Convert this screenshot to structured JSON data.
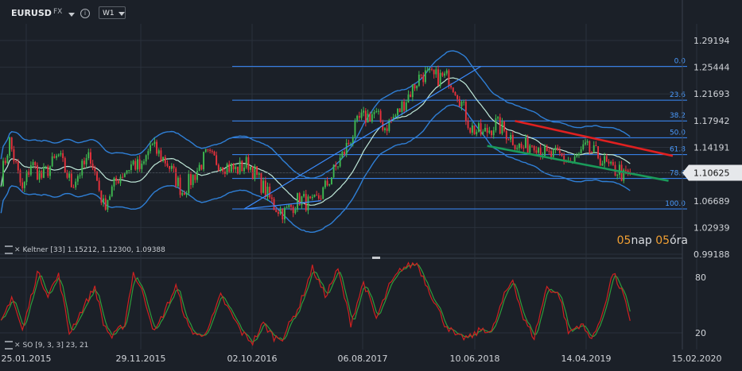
{
  "toolbar": {
    "symbol": "EURUSD",
    "source": "FX",
    "timeframe": "W1",
    "info_glyph": "i"
  },
  "keltner_legend": {
    "label": "Keltner",
    "params": "[33]",
    "upper": "1.15212",
    "middle": "1.12300",
    "lower": "1.09388"
  },
  "so_legend": {
    "label": "SO",
    "params": "[9, 3, 3]",
    "k": "23",
    "d": "21"
  },
  "countdown": {
    "days": "05",
    "days_unit": "nap",
    "hours": "05",
    "hours_unit": "óra"
  },
  "colors": {
    "background": "#1b2028",
    "grid": "#2a313b",
    "bull": "#3fb950",
    "bear": "#e8323c",
    "keltner": "#2f7fd6",
    "ma": "#bfe8d8",
    "fib": "#3a8cff",
    "trend_red": "#e02020",
    "trend_green": "#1a9a5a",
    "stoch_k": "#d02020",
    "stoch_d": "#2e9c3c",
    "countdown": "#f2a033"
  },
  "chart_data": {
    "type": "candlestick",
    "price_axis": {
      "ticks": [
        "1.29194",
        "1.25444",
        "1.21693",
        "1.17942",
        "1.14191",
        "1.10625",
        "1.06689",
        "1.02939",
        "0.99188"
      ],
      "current": "1.10625",
      "ylim": [
        0.985,
        1.33
      ]
    },
    "x_axis": {
      "labels": [
        "25.01.2015",
        "29.11.2015",
        "02.10.2016",
        "06.08.2017",
        "10.06.2018",
        "14.04.2019",
        "15.02.2020"
      ]
    },
    "price_waypoints": [
      [
        0,
        1.1
      ],
      [
        4,
        1.15
      ],
      [
        10,
        1.08
      ],
      [
        14,
        1.12
      ],
      [
        19,
        1.1
      ],
      [
        27,
        1.13
      ],
      [
        33,
        1.09
      ],
      [
        42,
        1.13
      ],
      [
        48,
        1.06
      ],
      [
        55,
        1.1
      ],
      [
        62,
        1.12
      ],
      [
        66,
        1.11
      ],
      [
        70,
        1.145
      ],
      [
        78,
        1.12
      ],
      [
        85,
        1.08
      ],
      [
        90,
        1.1
      ],
      [
        96,
        1.13
      ],
      [
        103,
        1.12
      ],
      [
        110,
        1.11
      ],
      [
        116,
        1.12
      ],
      [
        122,
        1.09
      ],
      [
        128,
        1.06
      ],
      [
        133,
        1.05
      ],
      [
        140,
        1.07
      ],
      [
        146,
        1.06
      ],
      [
        151,
        1.08
      ],
      [
        160,
        1.13
      ],
      [
        168,
        1.18
      ],
      [
        175,
        1.19
      ],
      [
        180,
        1.17
      ],
      [
        186,
        1.19
      ],
      [
        192,
        1.22
      ],
      [
        197,
        1.245
      ],
      [
        203,
        1.24
      ],
      [
        210,
        1.24
      ],
      [
        214,
        1.22
      ],
      [
        220,
        1.17
      ],
      [
        226,
        1.16
      ],
      [
        232,
        1.175
      ],
      [
        238,
        1.16
      ],
      [
        244,
        1.14
      ],
      [
        250,
        1.15
      ],
      [
        256,
        1.13
      ],
      [
        262,
        1.13
      ],
      [
        268,
        1.12
      ],
      [
        274,
        1.14
      ],
      [
        280,
        1.13
      ],
      [
        286,
        1.11
      ],
      [
        290,
        1.11
      ],
      [
        292,
        1.1
      ],
      [
        295,
        1.106
      ]
    ],
    "fibonacci": {
      "levels": [
        {
          "label": "0.0",
          "value": 1.2555
        },
        {
          "label": "23.6",
          "value": 1.2082
        },
        {
          "label": "38.2",
          "value": 1.179
        },
        {
          "label": "50.0",
          "value": 1.1554
        },
        {
          "label": "61.8",
          "value": 1.1318
        },
        {
          "label": "78.6",
          "value": 1.0982
        },
        {
          "label": "100.0",
          "value": 1.0554
        }
      ]
    },
    "trendlines": [
      {
        "color": "trend_red",
        "from": [
          241,
          1.179
        ],
        "to": [
          315,
          1.13
        ]
      },
      {
        "color": "trend_green",
        "from": [
          228,
          1.144
        ],
        "to": [
          313,
          1.095
        ]
      },
      {
        "color": "fib",
        "from": [
          114,
          1.0554
        ],
        "to": [
          225,
          1.2555
        ]
      },
      {
        "color": "fib",
        "from": [
          114,
          1.0554
        ],
        "to": [
          150,
          1.067
        ]
      }
    ],
    "stochastic": {
      "ylim": [
        0,
        100
      ],
      "ticks": [
        "80",
        "20"
      ],
      "k_waypoints": [
        [
          0,
          30
        ],
        [
          5,
          60
        ],
        [
          10,
          22
        ],
        [
          17,
          85
        ],
        [
          22,
          62
        ],
        [
          27,
          82
        ],
        [
          32,
          20
        ],
        [
          38,
          45
        ],
        [
          44,
          70
        ],
        [
          48,
          30
        ],
        [
          52,
          15
        ],
        [
          58,
          30
        ],
        [
          62,
          85
        ],
        [
          67,
          60
        ],
        [
          72,
          20
        ],
        [
          77,
          45
        ],
        [
          82,
          70
        ],
        [
          88,
          25
        ],
        [
          94,
          15
        ],
        [
          99,
          35
        ],
        [
          103,
          60
        ],
        [
          108,
          40
        ],
        [
          113,
          20
        ],
        [
          118,
          10
        ],
        [
          123,
          30
        ],
        [
          128,
          15
        ],
        [
          132,
          15
        ],
        [
          140,
          50
        ],
        [
          146,
          90
        ],
        [
          152,
          60
        ],
        [
          158,
          88
        ],
        [
          164,
          30
        ],
        [
          170,
          75
        ],
        [
          176,
          35
        ],
        [
          182,
          70
        ],
        [
          188,
          90
        ],
        [
          195,
          95
        ],
        [
          202,
          60
        ],
        [
          208,
          30
        ],
        [
          214,
          15
        ],
        [
          220,
          15
        ],
        [
          226,
          25
        ],
        [
          230,
          20
        ],
        [
          236,
          60
        ],
        [
          240,
          78
        ],
        [
          245,
          35
        ],
        [
          250,
          15
        ],
        [
          256,
          70
        ],
        [
          262,
          60
        ],
        [
          266,
          20
        ],
        [
          272,
          30
        ],
        [
          276,
          15
        ],
        [
          280,
          25
        ],
        [
          287,
          85
        ],
        [
          292,
          60
        ],
        [
          296,
          20
        ],
        [
          300,
          25
        ],
        [
          303,
          20
        ]
      ]
    }
  }
}
